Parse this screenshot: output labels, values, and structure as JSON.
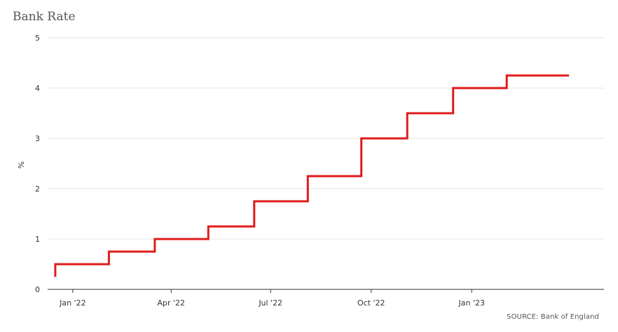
{
  "chart_data": {
    "type": "line",
    "title": "Bank Rate",
    "xlabel": "",
    "ylabel": "%",
    "source": "SOURCE: Bank of England",
    "step": true,
    "color": "#e01b1b",
    "grid": "horizontal",
    "legend": "none",
    "ylim": [
      0,
      5
    ],
    "xlim": [
      "2021-12-09",
      "2023-05-02"
    ],
    "y_ticks": [
      0,
      1,
      2,
      3,
      4,
      5
    ],
    "x_ticks": [
      {
        "date": "2022-01-01",
        "label": "Jan '22"
      },
      {
        "date": "2022-04-01",
        "label": "Apr '22"
      },
      {
        "date": "2022-07-01",
        "label": "Jul '22"
      },
      {
        "date": "2022-10-01",
        "label": "Oct '22"
      },
      {
        "date": "2023-01-01",
        "label": "Jan '23"
      }
    ],
    "series": [
      {
        "points": [
          {
            "x": "2021-12-16",
            "y": 0.25
          },
          {
            "x": "2021-12-16",
            "y": 0.5
          },
          {
            "x": "2022-02-03",
            "y": 0.5
          },
          {
            "x": "2022-02-03",
            "y": 0.75
          },
          {
            "x": "2022-03-17",
            "y": 0.75
          },
          {
            "x": "2022-03-17",
            "y": 1.0
          },
          {
            "x": "2022-05-05",
            "y": 1.0
          },
          {
            "x": "2022-05-05",
            "y": 1.25
          },
          {
            "x": "2022-06-16",
            "y": 1.25
          },
          {
            "x": "2022-06-16",
            "y": 1.75
          },
          {
            "x": "2022-08-04",
            "y": 1.75
          },
          {
            "x": "2022-08-04",
            "y": 2.25
          },
          {
            "x": "2022-09-22",
            "y": 2.25
          },
          {
            "x": "2022-09-22",
            "y": 3.0
          },
          {
            "x": "2022-11-03",
            "y": 3.0
          },
          {
            "x": "2022-11-03",
            "y": 3.5
          },
          {
            "x": "2022-12-15",
            "y": 3.5
          },
          {
            "x": "2022-12-15",
            "y": 4.0
          },
          {
            "x": "2023-02-02",
            "y": 4.0
          },
          {
            "x": "2023-02-02",
            "y": 4.25
          },
          {
            "x": "2023-03-31",
            "y": 4.25
          }
        ]
      }
    ]
  }
}
